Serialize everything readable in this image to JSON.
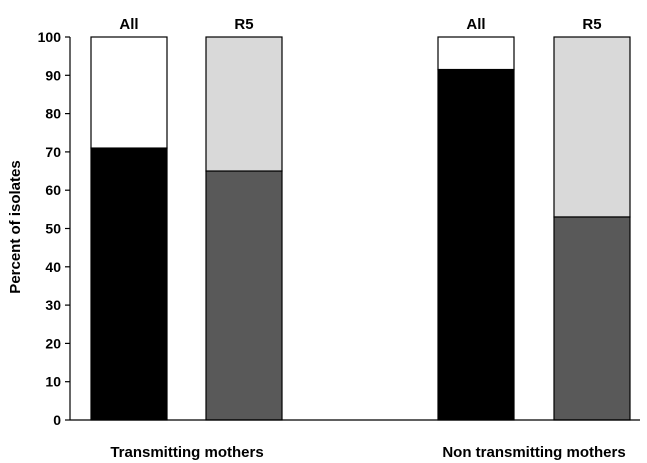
{
  "chart_data": {
    "type": "bar",
    "stacked": true,
    "ylabel": "Percent of isolates",
    "xlabel": "",
    "ylim": [
      0,
      100
    ],
    "yticks": [
      0,
      10,
      20,
      30,
      40,
      50,
      60,
      70,
      80,
      90,
      100
    ],
    "grid": false,
    "legend": "none",
    "groups": [
      {
        "label": "Transmitting mothers",
        "bars": [
          {
            "label": "All",
            "lower_value": 71,
            "upper_value": 29,
            "lower_color": "#000000",
            "upper_color": "#ffffff"
          },
          {
            "label": "R5",
            "lower_value": 65,
            "upper_value": 35,
            "lower_color": "#595959",
            "upper_color": "#d9d9d9"
          }
        ]
      },
      {
        "label": "Non transmitting mothers",
        "bars": [
          {
            "label": "All",
            "lower_value": 91.5,
            "upper_value": 8.5,
            "lower_color": "#000000",
            "upper_color": "#ffffff"
          },
          {
            "label": "R5",
            "lower_value": 53,
            "upper_value": 47,
            "lower_color": "#595959",
            "upper_color": "#d9d9d9"
          }
        ]
      }
    ]
  }
}
